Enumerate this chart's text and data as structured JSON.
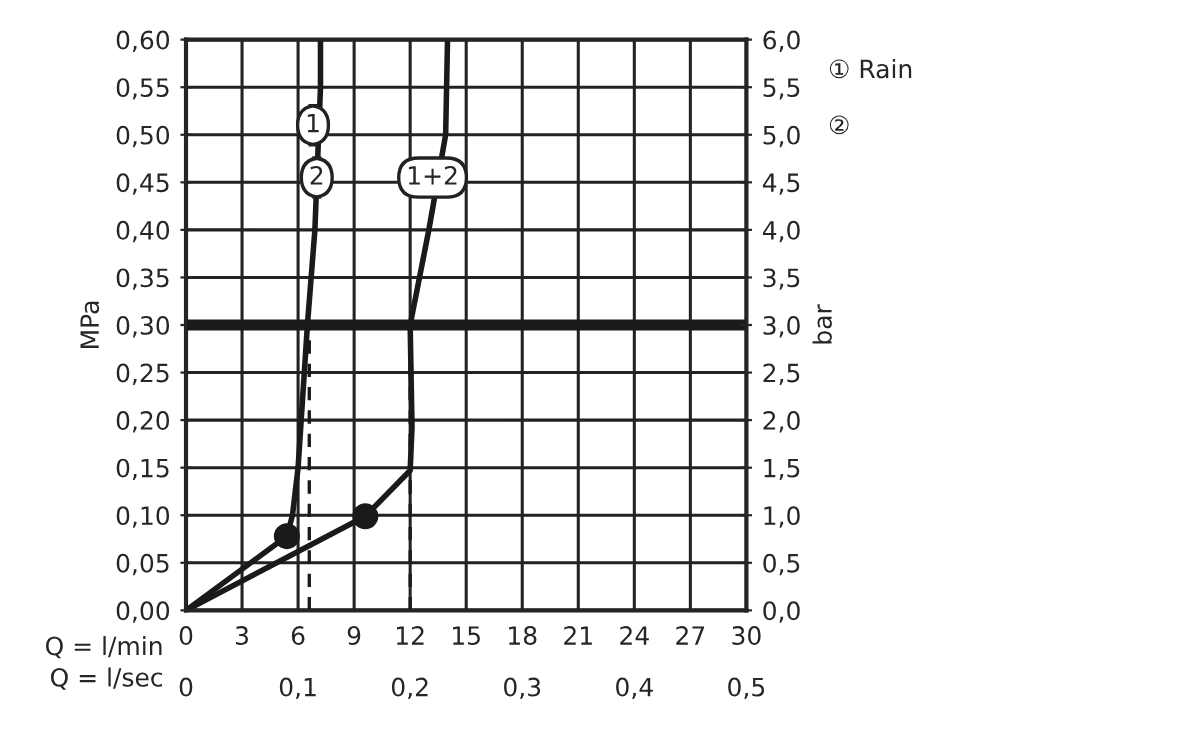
{
  "chart_data": {
    "type": "line",
    "ylabel": "MPa",
    "y2label": "bar",
    "xlabel": "Q = l/min",
    "x2label": "Q = l/sec",
    "series": [
      {
        "color": "#1a1a1a",
        "x": [
          0,
          5.4,
          5.7,
          6.0,
          6.5,
          6.9,
          7.2,
          7.2
        ],
        "values": [
          0,
          0.078,
          0.1,
          0.15,
          0.3,
          0.4,
          0.55,
          0.6
        ]
      },
      {
        "color": "#1a1a1a",
        "x": [
          0,
          9.6,
          12.0,
          12.1,
          12.0,
          13.0,
          13.9,
          14.0
        ],
        "values": [
          0,
          0.099,
          0.147,
          0.193,
          0.3,
          0.4,
          0.5,
          0.6
        ]
      },
      {
        "type": "scatter",
        "color": "#1a1a1a",
        "marker": "circle",
        "x": [
          5.4,
          9.6
        ],
        "values": [
          0.078,
          0.099
        ]
      },
      {
        "color": "#1a1a1a",
        "line_style": "dashed",
        "x": [
          6.6,
          6.6
        ],
        "values": [
          0,
          0.3
        ]
      },
      {
        "color": "#1a1a1a",
        "line_style": "dashed",
        "x": [
          12.0,
          12.0
        ],
        "values": [
          0,
          0.3
        ]
      }
    ],
    "ref_lines": [
      {
        "axis": "y",
        "value": 0.3,
        "color": "#1a1a1a"
      }
    ],
    "annotations": [
      {
        "text": "1",
        "x": 6.8,
        "y": 0.51
      },
      {
        "text": "2",
        "x": 7.0,
        "y": 0.455
      },
      {
        "text": "1+2",
        "x": 13.2,
        "y": 0.455
      },
      "① Rain",
      "②"
    ],
    "xlim": [
      0,
      30
    ],
    "xticks": [
      0,
      3,
      6,
      9,
      12,
      15,
      18,
      21,
      24,
      27,
      30
    ],
    "x2lim": [
      0,
      0.5
    ],
    "x2ticks": [
      0,
      {
        "value": 0.1,
        "label": "0,1"
      },
      {
        "value": 0.2,
        "label": "0,2"
      },
      {
        "value": 0.3,
        "label": "0,3"
      },
      {
        "value": 0.4,
        "label": "0,4"
      },
      {
        "value": 0.5,
        "label": "0,5"
      }
    ],
    "ylim": [
      0,
      0.6
    ],
    "yticks": [
      {
        "value": 0,
        "label": "0,00"
      },
      {
        "value": 0.05,
        "label": "0,05"
      },
      {
        "value": 0.1,
        "label": "0,10"
      },
      {
        "value": 0.15,
        "label": "0,15"
      },
      {
        "value": 0.2,
        "label": "0,20"
      },
      {
        "value": 0.25,
        "label": "0,25"
      },
      {
        "value": 0.3,
        "label": "0,30"
      },
      {
        "value": 0.35,
        "label": "0,35"
      },
      {
        "value": 0.4,
        "label": "0,40"
      },
      {
        "value": 0.45,
        "label": "0,45"
      },
      {
        "value": 0.5,
        "label": "0,50"
      },
      {
        "value": 0.55,
        "label": "0,55"
      },
      {
        "value": 0.6,
        "label": "0,60"
      }
    ],
    "y2lim": [
      0,
      6
    ],
    "y2ticks": [
      {
        "value": 0,
        "label": "0,0"
      },
      {
        "value": 0.5,
        "label": "0,5"
      },
      {
        "value": 1,
        "label": "1,0"
      },
      {
        "value": 1.5,
        "label": "1,5"
      },
      {
        "value": 2,
        "label": "2,0"
      },
      {
        "value": 2.5,
        "label": "2,5"
      },
      {
        "value": 3,
        "label": "3,0"
      },
      {
        "value": 3.5,
        "label": "3,5"
      },
      {
        "value": 4,
        "label": "4,0"
      },
      {
        "value": 4.5,
        "label": "4,5"
      },
      {
        "value": 5,
        "label": "5,0"
      },
      {
        "value": 5.5,
        "label": "5,5"
      },
      {
        "value": 6,
        "label": "6,0"
      }
    ],
    "grid": true
  }
}
